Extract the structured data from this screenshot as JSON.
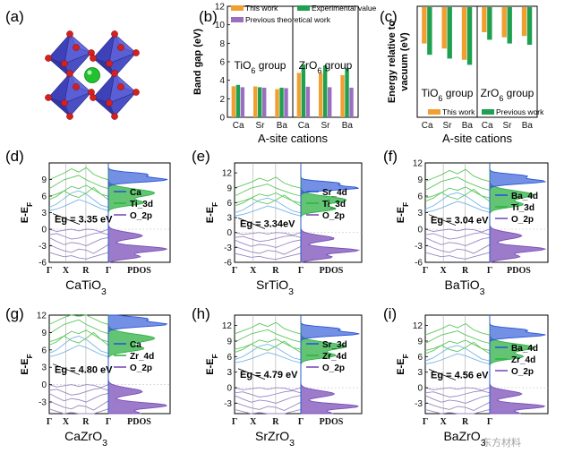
{
  "colors": {
    "this_work": "#f0a030",
    "experimental": "#1fa050",
    "previous": "#9b6fc0",
    "band_ti": "#77b5e6",
    "band_a": "#5cc85c",
    "band_o": "#9b86c4",
    "pdos_a": "#2a55d6",
    "pdos_b": "#2fb245",
    "pdos_o": "#7b4fb8",
    "crystal_octahedra": "#4b50c8",
    "crystal_center": "#22c22e",
    "crystal_oxygen": "#d42020"
  },
  "panel_a": {
    "label": "(a)"
  },
  "chart_data": [
    {
      "panel": "(b)",
      "type": "bar",
      "ylabel": "Band gap (eV)",
      "xlabel": "A-site cations",
      "ylim": [
        0,
        12
      ],
      "yticks": [
        "0",
        "2",
        "4",
        "6",
        "8",
        "10",
        "12"
      ],
      "groups": [
        "TiO6 group",
        "ZrO6 group"
      ],
      "categories": [
        "Ca",
        "Sr",
        "Ba",
        "Ca",
        "Sr",
        "Ba"
      ],
      "series": [
        {
          "name": "This work",
          "values": [
            3.35,
            3.34,
            3.04,
            4.8,
            4.79,
            4.56
          ]
        },
        {
          "name": "Experimental value",
          "values": [
            3.5,
            3.25,
            3.2,
            5.7,
            5.6,
            5.3
          ]
        },
        {
          "name": "Previous theoretical work",
          "values": [
            3.25,
            3.2,
            3.15,
            3.3,
            3.25,
            3.2
          ]
        }
      ],
      "legend_placement": "top"
    },
    {
      "panel": "(c)",
      "type": "bar",
      "ylabel": "Energy relative to vacuum (eV)",
      "xlabel": "A-site cations",
      "ylim": [
        -6,
        0
      ],
      "groups": [
        "TiO6 group",
        "ZrO6 group"
      ],
      "categories": [
        "Ca",
        "Sr",
        "Ba",
        "Ca",
        "Sr",
        "Ba"
      ],
      "series": [
        {
          "name": "This work",
          "values": [
            -2.9,
            -3.3,
            -4.2,
            -2.0,
            -2.4,
            -2.3
          ]
        },
        {
          "name": "Previous work",
          "values": [
            -3.8,
            -4.1,
            -4.6,
            -2.6,
            -2.9,
            -3.0
          ]
        }
      ],
      "legend_placement": "bottom"
    },
    {
      "panel": "(d)",
      "type": "line",
      "compound": "CaTiO3",
      "ylabel": "E-EF",
      "yticks": [
        9,
        6,
        3,
        0,
        -3,
        -6
      ],
      "ylim": [
        -6,
        12
      ],
      "kpoints": [
        "Γ",
        "X",
        "R",
        "Γ"
      ],
      "pdos_label": "PDOS",
      "gap_label": "Eg = 3.35 eV",
      "eg": 3.35,
      "cbm": 3.35,
      "legend": [
        "Ca",
        "Ti_3d",
        "O_2p"
      ]
    },
    {
      "panel": "(e)",
      "type": "line",
      "compound": "SrTiO3",
      "ylabel": "E-EF",
      "yticks": [
        12,
        9,
        6,
        3,
        0,
        -3,
        -6
      ],
      "ylim": [
        -6,
        14
      ],
      "kpoints": [
        "Γ",
        "X",
        "R",
        "Γ"
      ],
      "pdos_label": "PDOS",
      "gap_label": "Eg = 3.34eV",
      "eg": 3.34,
      "cbm": 3.34,
      "legend": [
        "Sr_4d",
        "Ti_3d",
        "O_2p"
      ]
    },
    {
      "panel": "(f)",
      "type": "line",
      "compound": "BaTiO3",
      "ylabel": "E-EF",
      "yticks": [
        12,
        9,
        6,
        3,
        0,
        -3,
        -6
      ],
      "ylim": [
        -6,
        12
      ],
      "kpoints": [
        "Γ",
        "X",
        "R",
        "Γ"
      ],
      "pdos_label": "PDOS",
      "gap_label": "Eg = 3.04 eV",
      "eg": 3.04,
      "cbm": 3.04,
      "legend": [
        "Ba_4d",
        "Ti_3d",
        "O_2p"
      ]
    },
    {
      "panel": "(g)",
      "type": "line",
      "compound": "CaZrO3",
      "ylabel": "E-EF",
      "yticks": [
        12,
        9,
        6,
        3,
        0,
        -3
      ],
      "ylim": [
        -5,
        12
      ],
      "kpoints": [
        "Γ",
        "X",
        "R",
        "Γ"
      ],
      "pdos_label": "PDOS",
      "gap_label": "Eg = 4.80 eV",
      "eg": 4.8,
      "cbm": 4.8,
      "legend": [
        "Ca",
        "Zr_4d",
        "O_2p"
      ]
    },
    {
      "panel": "(h)",
      "type": "line",
      "compound": "SrZrO3",
      "ylabel": "E-EF",
      "yticks": [
        12,
        9,
        6,
        3,
        0,
        -3
      ],
      "ylim": [
        -5,
        14
      ],
      "kpoints": [
        "Γ",
        "X",
        "R",
        "Γ"
      ],
      "pdos_label": "PDOS",
      "gap_label": "Eg = 4.79 eV",
      "eg": 4.79,
      "cbm": 4.79,
      "legend": [
        "Sr_3d",
        "Zr_4d",
        "O_2p"
      ]
    },
    {
      "panel": "(i)",
      "type": "line",
      "compound": "BaZrO3",
      "ylabel": "E-EF",
      "yticks": [
        12,
        9,
        6,
        3,
        0,
        -3
      ],
      "ylim": [
        -5,
        14
      ],
      "kpoints": [
        "Γ",
        "X",
        "R",
        "Γ"
      ],
      "pdos_label": "",
      "gap_label": "Eg = 4.56 eV",
      "eg": 4.56,
      "cbm": 4.56,
      "legend": [
        "Ba_4d",
        "Zr_4d",
        "O_2p"
      ]
    }
  ],
  "watermark": "东方材料"
}
